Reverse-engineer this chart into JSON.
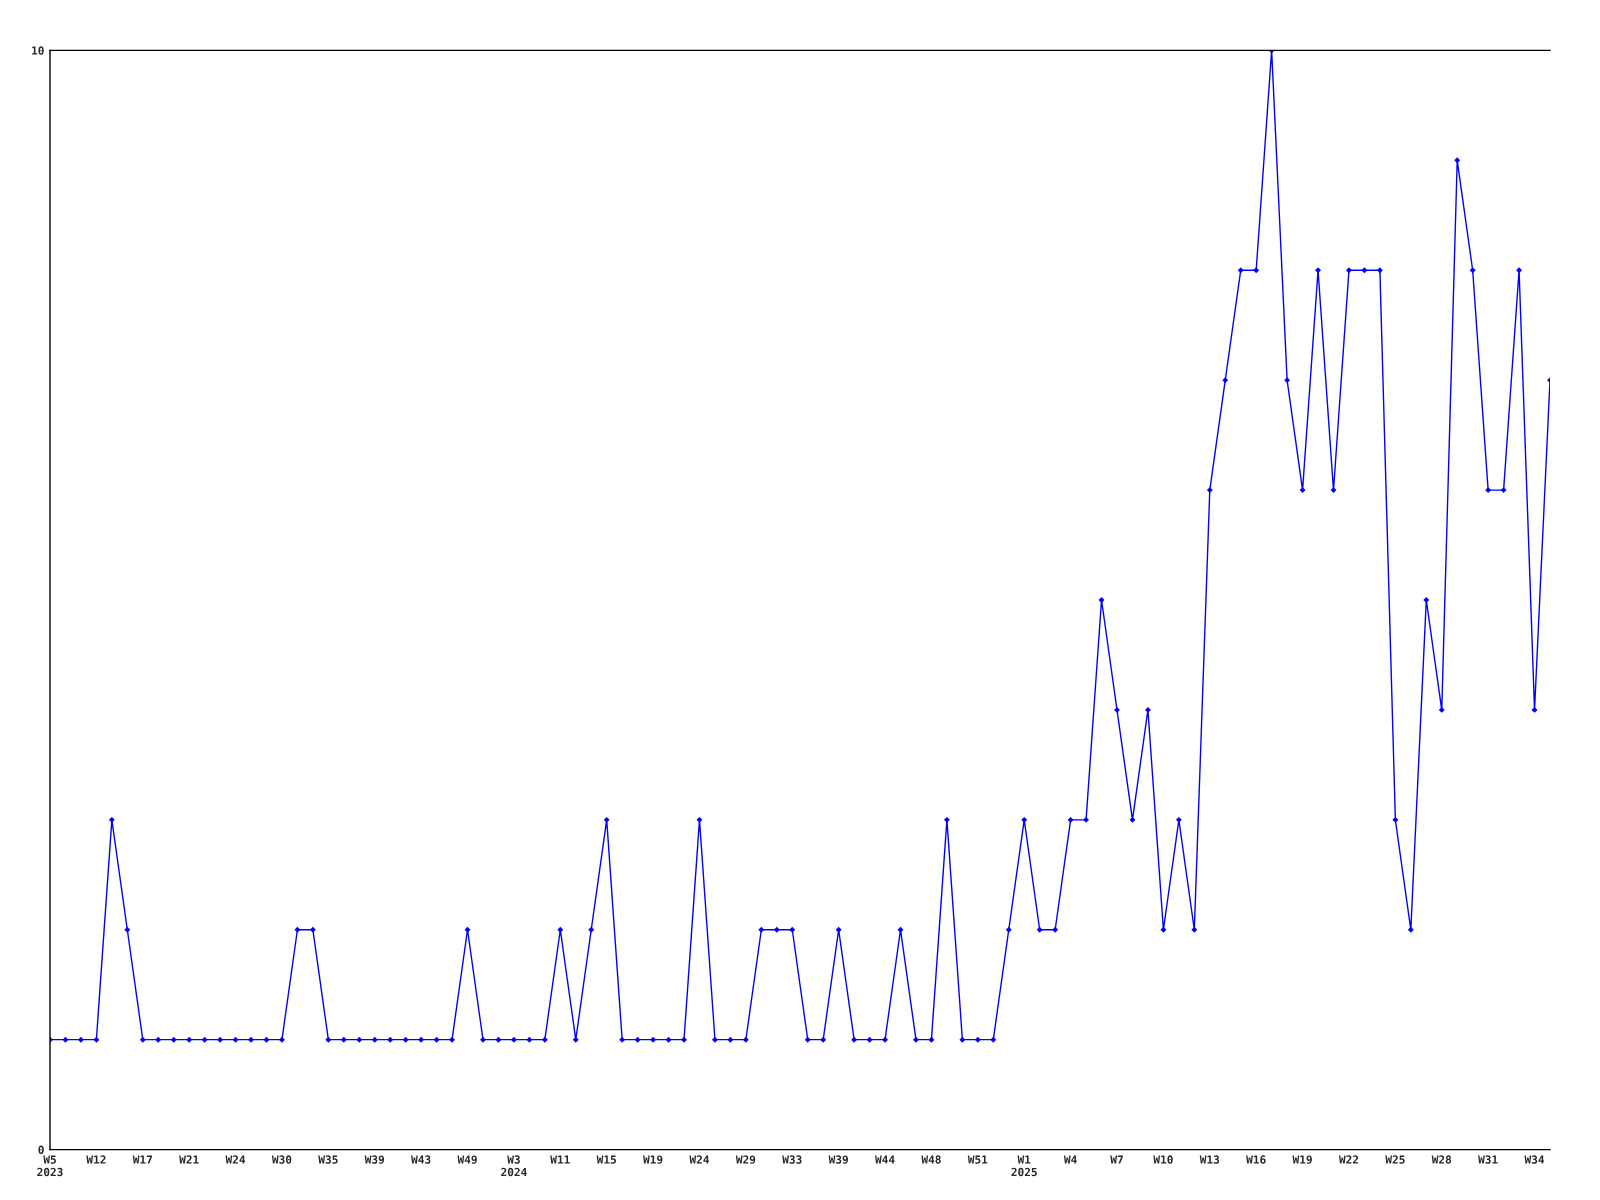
{
  "chart_data": {
    "type": "line",
    "categories": [
      "W5\n2023",
      null,
      null,
      "W12",
      null,
      null,
      "W17",
      null,
      null,
      "W21",
      null,
      null,
      "W24",
      null,
      null,
      "W30",
      null,
      null,
      "W35",
      null,
      null,
      "W39",
      null,
      null,
      "W43",
      null,
      null,
      "W49",
      null,
      null,
      "W3\n2024",
      null,
      null,
      "W11",
      null,
      null,
      "W15",
      null,
      null,
      "W19",
      null,
      null,
      "W24",
      null,
      null,
      "W29",
      null,
      null,
      "W33",
      null,
      null,
      "W39",
      null,
      null,
      "W44",
      null,
      null,
      "W48",
      null,
      null,
      "W51",
      null,
      null,
      "W1\n2025",
      null,
      null,
      "W4",
      null,
      null,
      "W7",
      null,
      null,
      "W10",
      null,
      null,
      "W13",
      null,
      null,
      "W16",
      null,
      null,
      "W19",
      null,
      null,
      "W22",
      null,
      null,
      "W25",
      null,
      null,
      "W28",
      null,
      null,
      "W31",
      null,
      null,
      "W34",
      null
    ],
    "series": [
      {
        "color": "#0000ff",
        "values": [
          1,
          1,
          1,
          1,
          3,
          2,
          1,
          1,
          1,
          1,
          1,
          1,
          1,
          1,
          1,
          1,
          2,
          2,
          1,
          1,
          1,
          1,
          1,
          1,
          1,
          1,
          1,
          2,
          1,
          1,
          1,
          1,
          1,
          2,
          1,
          2,
          3,
          1,
          1,
          1,
          1,
          1,
          3,
          1,
          1,
          1,
          2,
          2,
          2,
          1,
          1,
          2,
          1,
          1,
          1,
          2,
          1,
          1,
          3,
          1,
          1,
          1,
          2,
          3,
          2,
          2,
          3,
          3,
          5,
          4,
          3,
          4,
          2,
          3,
          2,
          6,
          7,
          8,
          8,
          10,
          7,
          6,
          8,
          6,
          8,
          8,
          8,
          3,
          2,
          5,
          4,
          9,
          8,
          6,
          6,
          8,
          4,
          7
        ]
      }
    ],
    "ylim": [
      0,
      10
    ],
    "yticks": [
      0,
      10
    ],
    "grid": false,
    "legend": false,
    "marker": "diamond",
    "line_style": "solid"
  }
}
